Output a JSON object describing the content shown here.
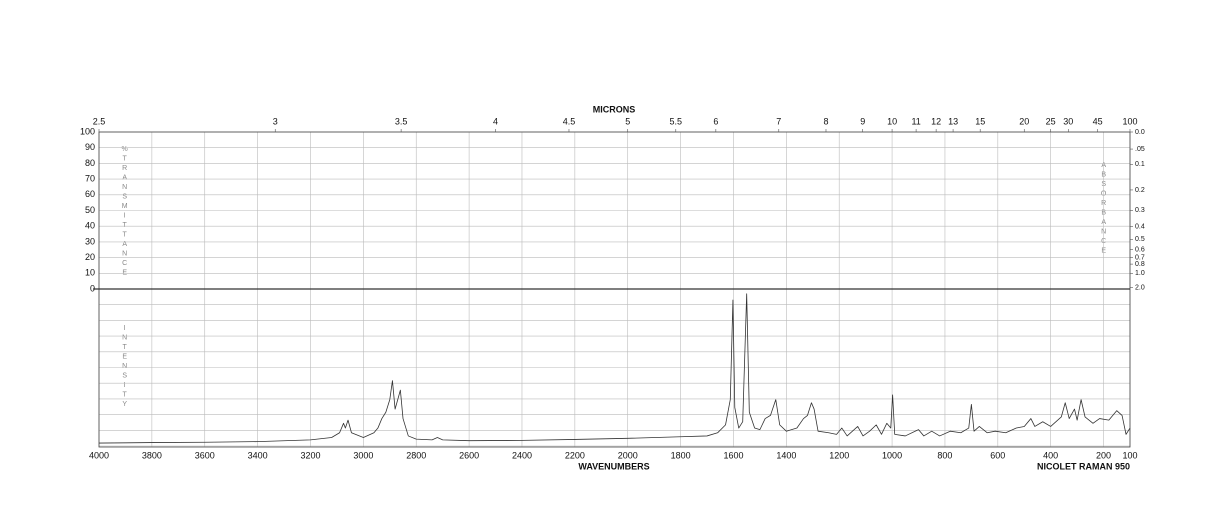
{
  "chart_data": {
    "type": "line",
    "top_axis_label": "MICRONS",
    "x_label": "WAVENUMBERS",
    "instrument": "NICOLET RAMAN 950",
    "left_label": "%TRANSMITTANCE",
    "right_label": "ABSORBANCE",
    "intensity_label": "INTENSITY",
    "xlim": [
      4000,
      100
    ],
    "xticks": [
      4000,
      3800,
      3600,
      3400,
      3200,
      3000,
      2800,
      2600,
      2400,
      2200,
      2000,
      1800,
      1600,
      1400,
      1200,
      1000,
      800,
      600,
      400,
      200,
      100
    ],
    "top_ticks": [
      2.5,
      3,
      3.5,
      4,
      4.5,
      5,
      5.5,
      6,
      7,
      8,
      9,
      10,
      11,
      12,
      13,
      15,
      20,
      25,
      30,
      45,
      100
    ],
    "ylim": [
      0,
      100
    ],
    "yticks": [
      0,
      10,
      20,
      30,
      40,
      50,
      60,
      70,
      80,
      90,
      100
    ],
    "y2ticks": [
      {
        "value": 0,
        "label": "0.0"
      },
      {
        "value": 0.05,
        "label": ".05"
      },
      0.1,
      0.2,
      0.3,
      0.4,
      0.5,
      0.6,
      0.7,
      0.8,
      {
        "value": 1,
        "label": "1.0"
      },
      {
        "value": 2,
        "label": "2.0"
      }
    ],
    "intensity_ylim": [
      0,
      100
    ],
    "color": "#333333",
    "x": [
      4000,
      3800,
      3600,
      3400,
      3200,
      3120,
      3090,
      3075,
      3068,
      3058,
      3045,
      3000,
      2960,
      2945,
      2930,
      2915,
      2900,
      2890,
      2880,
      2870,
      2860,
      2850,
      2830,
      2800,
      2740,
      2720,
      2700,
      2600,
      2400,
      2200,
      2000,
      1800,
      1700,
      1660,
      1630,
      1612,
      1602,
      1595,
      1580,
      1565,
      1550,
      1540,
      1520,
      1500,
      1480,
      1460,
      1440,
      1425,
      1400,
      1360,
      1335,
      1320,
      1305,
      1295,
      1280,
      1240,
      1210,
      1190,
      1170,
      1150,
      1130,
      1110,
      1085,
      1060,
      1040,
      1020,
      1005,
      998,
      990,
      950,
      900,
      880,
      850,
      820,
      780,
      740,
      710,
      700,
      690,
      670,
      640,
      610,
      570,
      530,
      500,
      475,
      460,
      430,
      400,
      360,
      345,
      330,
      310,
      300,
      285,
      270,
      240,
      215,
      180,
      150,
      130,
      115,
      100
    ],
    "values": [
      2.5,
      2.8,
      3,
      3.4,
      4.5,
      6,
      9,
      15,
      12,
      17,
      9,
      6,
      9,
      12,
      18,
      22,
      30,
      42,
      24,
      30,
      36,
      18,
      7,
      5,
      4.5,
      6,
      4.5,
      4,
      4.2,
      4.8,
      5.5,
      6.5,
      7,
      9,
      14,
      30,
      93,
      25,
      12,
      16,
      97,
      22,
      12,
      11,
      18,
      20,
      30,
      14,
      10,
      12,
      18,
      20,
      28,
      24,
      10,
      9,
      8,
      12,
      7,
      10,
      13,
      7,
      10,
      14,
      8,
      15,
      12,
      33,
      8,
      7,
      11,
      7,
      10,
      7,
      10,
      9,
      12,
      27,
      10,
      13,
      9,
      10,
      9,
      12,
      13,
      18,
      13,
      16,
      13,
      19,
      28,
      18,
      24,
      17,
      30,
      19,
      15,
      18,
      17,
      23,
      20,
      8,
      12
    ]
  }
}
